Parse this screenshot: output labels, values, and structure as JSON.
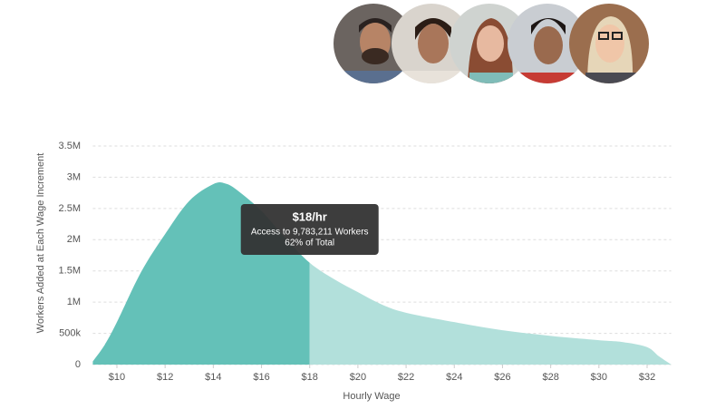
{
  "chart_data": {
    "type": "area",
    "x_label": "Hourly Wage",
    "y_label": "Workers Added at Each Wage Increment",
    "x": [
      9,
      9.5,
      10,
      11,
      12,
      13,
      14,
      14.5,
      15,
      16,
      17,
      18,
      19,
      20,
      21,
      22,
      24,
      26,
      28,
      30,
      31,
      32,
      32.5,
      33
    ],
    "values": [
      50000,
      320000,
      680000,
      1480000,
      2090000,
      2620000,
      2890000,
      2900000,
      2790000,
      2460000,
      2020000,
      1630000,
      1370000,
      1160000,
      960000,
      830000,
      680000,
      550000,
      460000,
      390000,
      360000,
      280000,
      130000,
      0
    ],
    "color": "#b2e0db",
    "highlight_color": "#64c1b8",
    "highlight_x": 18,
    "xlim": [
      9,
      33
    ],
    "ylim": [
      0,
      3500000
    ],
    "xticks": [
      {
        "value": 10,
        "label": "$10"
      },
      {
        "value": 12,
        "label": "$12"
      },
      {
        "value": 14,
        "label": "$14"
      },
      {
        "value": 16,
        "label": "$16"
      },
      {
        "value": 18,
        "label": "$18"
      },
      {
        "value": 20,
        "label": "$20"
      },
      {
        "value": 22,
        "label": "$22"
      },
      {
        "value": 24,
        "label": "$24"
      },
      {
        "value": 26,
        "label": "$26"
      },
      {
        "value": 28,
        "label": "$28"
      },
      {
        "value": 30,
        "label": "$30"
      },
      {
        "value": 32,
        "label": "$32"
      }
    ],
    "yticks": [
      0,
      {
        "value": 500000,
        "label": "500k"
      },
      {
        "value": 1000000,
        "label": "1M"
      },
      {
        "value": 1500000,
        "label": "1.5M"
      },
      {
        "value": 2000000,
        "label": "2M"
      },
      {
        "value": 2500000,
        "label": "2.5M"
      },
      {
        "value": 3000000,
        "label": "3M"
      },
      {
        "value": 3500000,
        "label": "3.5M"
      }
    ],
    "grid": true,
    "tooltip": {
      "title": "$18/hr",
      "line1": "Access to 9,783,211 Workers",
      "line2": "62% of Total"
    }
  }
}
